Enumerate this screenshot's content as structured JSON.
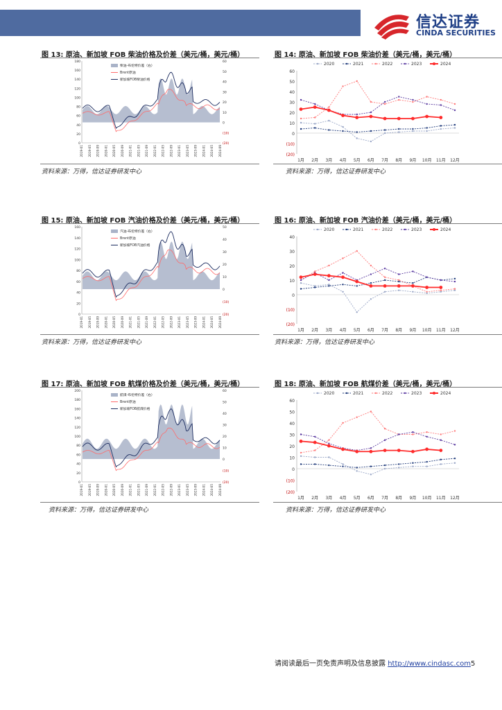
{
  "header": {
    "logo_cn": "信达证券",
    "logo_en": "CINDA SECURITIES",
    "brand_color": "#1f3f86",
    "band_color": "#4f6ba0"
  },
  "figures": {
    "f13": {
      "title": "图 13: 原油、新加坡 FOB 柴油价格及价差（美元/桶，美元/桶）",
      "source": "资料来源：万得，信达证券研发中心"
    },
    "f14": {
      "title": "图 14: 原油、新加坡 FOB 柴油价差（美元/桶，美元/桶）",
      "source": "资料来源：万得，信达证券研发中心"
    },
    "f15": {
      "title": "图 15: 原油、新加坡 FOB 汽油价格及价差（美元/桶，美元/桶）",
      "source": "资料来源：万得，信达证券研发中心"
    },
    "f16": {
      "title": "图 16: 原油、新加坡 FOB 汽油价差（美元/桶，美元/桶）",
      "source": "资料来源：万得，信达证券研发中心"
    },
    "f17": {
      "title": "图 17: 原油、新加坡 FOB 航煤价格及价差（美元/桶，美元/桶）",
      "source": "资料来源：万得，信达证券研发中心"
    },
    "f18": {
      "title": "图 18: 原油、新加坡 FOB 航煤价差（美元/桶，美元/桶）",
      "source": "资料来源：万得，信达证券研发中心"
    }
  },
  "footer": {
    "text": "请阅读最后一页免责声明及信息披露 ",
    "url": "http://www.cindasc.com",
    "page": "5"
  },
  "chart_data": [
    {
      "type": "area",
      "id": "f13",
      "series": [
        {
          "name": "柴油-布伦特价差（右）",
          "kind": "area",
          "color": "#a9b3c8"
        },
        {
          "name": "Brent原油",
          "kind": "line",
          "color": "#ff6b6b"
        },
        {
          "name": "新加坡FOB柴油价格",
          "kind": "line",
          "color": "#1a2a5e"
        }
      ],
      "left_ticks": [
        "180",
        "160",
        "140",
        "120",
        "100",
        "80",
        "60",
        "40",
        "20",
        "0"
      ],
      "right_ticks": [
        "60",
        "50",
        "40",
        "30",
        "20",
        "10",
        "0",
        "(10)",
        "(20)"
      ],
      "x_ticks": [
        "2019-01",
        "2019-05",
        "2019-09",
        "2020-01",
        "2020-05",
        "2020-09",
        "2021-01",
        "2021-05",
        "2021-09",
        "2022-01",
        "2022-05",
        "2022-09",
        "2023-01",
        "2023-05",
        "2023-09",
        "2024-01",
        "2024-05",
        "2024-09"
      ],
      "ylim": [
        0,
        180
      ],
      "y2lim": [
        -20,
        60
      ]
    },
    {
      "type": "line",
      "id": "f14",
      "x": [
        "1月",
        "2月",
        "3月",
        "4月",
        "5月",
        "6月",
        "7月",
        "8月",
        "9月",
        "10月",
        "11月",
        "12月"
      ],
      "yticks": [
        "60",
        "50",
        "40",
        "30",
        "20",
        "10",
        "0",
        "(10)",
        "(20)"
      ],
      "ylim": [
        -20,
        60
      ],
      "series": [
        {
          "name": "2020",
          "color": "#9aa7c7",
          "values": [
            10,
            9,
            12,
            6,
            -5,
            -8,
            0,
            1,
            2,
            2,
            4,
            5
          ]
        },
        {
          "name": "2021",
          "color": "#1f3a7a",
          "values": [
            4,
            5,
            3,
            2,
            1,
            2,
            3,
            4,
            4,
            5,
            7,
            8
          ]
        },
        {
          "name": "2022",
          "color": "#ff7a7a",
          "values": [
            14,
            15,
            25,
            45,
            50,
            30,
            28,
            32,
            30,
            35,
            32,
            28
          ]
        },
        {
          "name": "2023",
          "color": "#5a3aa0",
          "values": [
            32,
            28,
            22,
            18,
            18,
            20,
            30,
            35,
            32,
            28,
            27,
            22
          ]
        },
        {
          "name": "2024",
          "color": "#ff2a2a",
          "values": [
            23,
            25,
            22,
            17,
            15,
            16,
            14,
            14,
            14,
            16,
            15,
            null
          ]
        }
      ]
    },
    {
      "type": "area",
      "id": "f15",
      "series": [
        {
          "name": "汽油-布伦特价差（右）",
          "kind": "area",
          "color": "#a9b3c8"
        },
        {
          "name": "Brent原油",
          "kind": "line",
          "color": "#ff6b6b"
        },
        {
          "name": "新加坡FOB汽油价格",
          "kind": "line",
          "color": "#1a2a5e"
        }
      ],
      "left_ticks": [
        "160",
        "140",
        "120",
        "100",
        "80",
        "60",
        "40",
        "20",
        "0"
      ],
      "right_ticks": [
        "50",
        "40",
        "30",
        "20",
        "10",
        "0",
        "(10)",
        "(20)"
      ],
      "x_ticks": [
        "2019-01",
        "2019-05",
        "2019-09",
        "2020-01",
        "2020-05",
        "2020-09",
        "2021-01",
        "2021-05",
        "2021-09",
        "2022-01",
        "2022-05",
        "2022-09",
        "2023-01",
        "2023-05",
        "2023-09",
        "2024-01",
        "2024-05",
        "2024-09"
      ],
      "ylim": [
        0,
        160
      ],
      "y2lim": [
        -20,
        50
      ]
    },
    {
      "type": "line",
      "id": "f16",
      "x": [
        "1月",
        "2月",
        "3月",
        "4月",
        "5月",
        "6月",
        "7月",
        "8月",
        "9月",
        "10月",
        "11月",
        "12月"
      ],
      "yticks": [
        "40",
        "30",
        "20",
        "10",
        "0",
        "(10)",
        "(20)"
      ],
      "ylim": [
        -20,
        40
      ],
      "series": [
        {
          "name": "2020",
          "color": "#9aa7c7",
          "values": [
            8,
            6,
            7,
            2,
            -12,
            -3,
            2,
            3,
            2,
            1,
            2,
            3
          ]
        },
        {
          "name": "2021",
          "color": "#1f3a7a",
          "values": [
            4,
            5,
            6,
            7,
            6,
            8,
            10,
            9,
            8,
            12,
            10,
            11
          ]
        },
        {
          "name": "2022",
          "color": "#ff7a7a",
          "values": [
            10,
            16,
            20,
            25,
            30,
            20,
            12,
            10,
            6,
            2,
            3,
            4
          ]
        },
        {
          "name": "2023",
          "color": "#5a3aa0",
          "values": [
            10,
            15,
            10,
            15,
            10,
            14,
            18,
            14,
            16,
            12,
            10,
            9
          ]
        },
        {
          "name": "2024",
          "color": "#ff2a2a",
          "values": [
            12,
            14,
            13,
            12,
            9,
            6,
            6,
            6,
            6,
            5,
            5,
            null
          ]
        }
      ]
    },
    {
      "type": "area",
      "id": "f17",
      "series": [
        {
          "name": "航煤-布伦特价差（右）",
          "kind": "area",
          "color": "#a9b3c8"
        },
        {
          "name": "Brent原油",
          "kind": "line",
          "color": "#ff6b6b"
        },
        {
          "name": "新加坡FOB航煤价格",
          "kind": "line",
          "color": "#1a2a5e"
        }
      ],
      "left_ticks": [
        "200",
        "180",
        "160",
        "140",
        "120",
        "100",
        "80",
        "60",
        "40",
        "20",
        "0"
      ],
      "right_ticks": [
        "60",
        "50",
        "40",
        "30",
        "20",
        "10",
        "0",
        "(10)",
        "(20)"
      ],
      "x_ticks": [
        "2019-01",
        "2019-05",
        "2019-09",
        "2020-01",
        "2020-05",
        "2020-09",
        "2021-01",
        "2021-05",
        "2021-09",
        "2022-01",
        "2022-05",
        "2022-09",
        "2023-01",
        "2023-05",
        "2023-09",
        "2024-01",
        "2024-05",
        "2024-09"
      ],
      "ylim": [
        0,
        200
      ],
      "y2lim": [
        -20,
        60
      ]
    },
    {
      "type": "line",
      "id": "f18",
      "x": [
        "1月",
        "2月",
        "3月",
        "4月",
        "5月",
        "6月",
        "7月",
        "8月",
        "9月",
        "10月",
        "11月",
        "12月"
      ],
      "yticks": [
        "60",
        "50",
        "40",
        "30",
        "20",
        "10",
        "0",
        "(10)",
        "(20)"
      ],
      "ylim": [
        -20,
        60
      ],
      "series": [
        {
          "name": "2020",
          "color": "#9aa7c7",
          "values": [
            11,
            10,
            10,
            4,
            -2,
            -5,
            0,
            1,
            2,
            2,
            4,
            5
          ]
        },
        {
          "name": "2021",
          "color": "#1f3a7a",
          "values": [
            4,
            4,
            3,
            2,
            1,
            2,
            3,
            4,
            5,
            6,
            8,
            9
          ]
        },
        {
          "name": "2022",
          "color": "#ff7a7a",
          "values": [
            14,
            16,
            25,
            40,
            45,
            50,
            35,
            30,
            30,
            32,
            30,
            33
          ]
        },
        {
          "name": "2023",
          "color": "#5a3aa0",
          "values": [
            30,
            28,
            22,
            18,
            16,
            18,
            25,
            30,
            32,
            28,
            25,
            21
          ]
        },
        {
          "name": "2024",
          "color": "#ff2a2a",
          "values": [
            24,
            23,
            20,
            17,
            15,
            15,
            16,
            16,
            15,
            17,
            16,
            null
          ]
        }
      ]
    }
  ]
}
